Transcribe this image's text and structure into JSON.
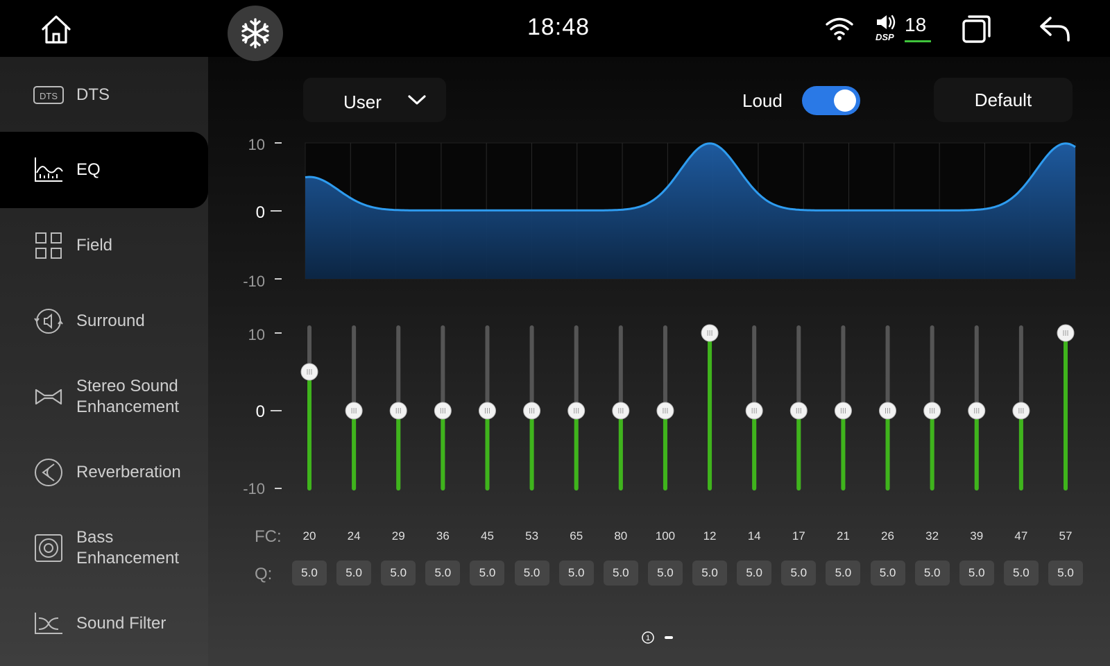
{
  "status": {
    "time": "18:48",
    "volume": "18",
    "dsp_label": "DSP"
  },
  "sidebar": {
    "items": [
      {
        "label": "DTS",
        "icon": "dts-icon",
        "active": false
      },
      {
        "label": "EQ",
        "icon": "eq-icon",
        "active": true
      },
      {
        "label": "Field",
        "icon": "field-icon",
        "active": false
      },
      {
        "label": "Surround",
        "icon": "surround-icon",
        "active": false
      },
      {
        "label": "Stereo Sound Enhancement",
        "icon": "stereo-icon",
        "active": false
      },
      {
        "label": "Reverberation",
        "icon": "reverb-icon",
        "active": false
      },
      {
        "label": "Bass Enhancement",
        "icon": "bass-icon",
        "active": false
      },
      {
        "label": "Sound Filter",
        "icon": "filter-icon",
        "active": false
      }
    ]
  },
  "controls": {
    "preset": "User",
    "loud_label": "Loud",
    "loud_on": true,
    "default_label": "Default"
  },
  "axis": {
    "top": "10",
    "mid": "0",
    "bottom": "-10"
  },
  "labels": {
    "fc": "FC:",
    "q": "Q:",
    "page": "1"
  },
  "chart_data": {
    "type": "line",
    "ylim": [
      -10,
      10
    ],
    "x": [
      "20",
      "24",
      "29",
      "36",
      "45",
      "53",
      "65",
      "80",
      "100",
      "12",
      "14",
      "17",
      "21",
      "26",
      "32",
      "39",
      "47",
      "57"
    ],
    "values": [
      5,
      0,
      0,
      0,
      0,
      0,
      0,
      0,
      0,
      10,
      0,
      0,
      0,
      0,
      0,
      0,
      0,
      10
    ]
  },
  "bands": [
    {
      "fc": "20",
      "q": "5.0",
      "gain": 5
    },
    {
      "fc": "24",
      "q": "5.0",
      "gain": 0
    },
    {
      "fc": "29",
      "q": "5.0",
      "gain": 0
    },
    {
      "fc": "36",
      "q": "5.0",
      "gain": 0
    },
    {
      "fc": "45",
      "q": "5.0",
      "gain": 0
    },
    {
      "fc": "53",
      "q": "5.0",
      "gain": 0
    },
    {
      "fc": "65",
      "q": "5.0",
      "gain": 0
    },
    {
      "fc": "80",
      "q": "5.0",
      "gain": 0
    },
    {
      "fc": "100",
      "q": "5.0",
      "gain": 0
    },
    {
      "fc": "12",
      "q": "5.0",
      "gain": 10
    },
    {
      "fc": "14",
      "q": "5.0",
      "gain": 0
    },
    {
      "fc": "17",
      "q": "5.0",
      "gain": 0
    },
    {
      "fc": "21",
      "q": "5.0",
      "gain": 0
    },
    {
      "fc": "26",
      "q": "5.0",
      "gain": 0
    },
    {
      "fc": "32",
      "q": "5.0",
      "gain": 0
    },
    {
      "fc": "39",
      "q": "5.0",
      "gain": 0
    },
    {
      "fc": "47",
      "q": "5.0",
      "gain": 0
    },
    {
      "fc": "57",
      "q": "5.0",
      "gain": 10
    }
  ],
  "colors": {
    "accent_blue": "#2a79e6",
    "slider_green": "#3fb41c",
    "curve_blue": "#2e9cf0"
  }
}
